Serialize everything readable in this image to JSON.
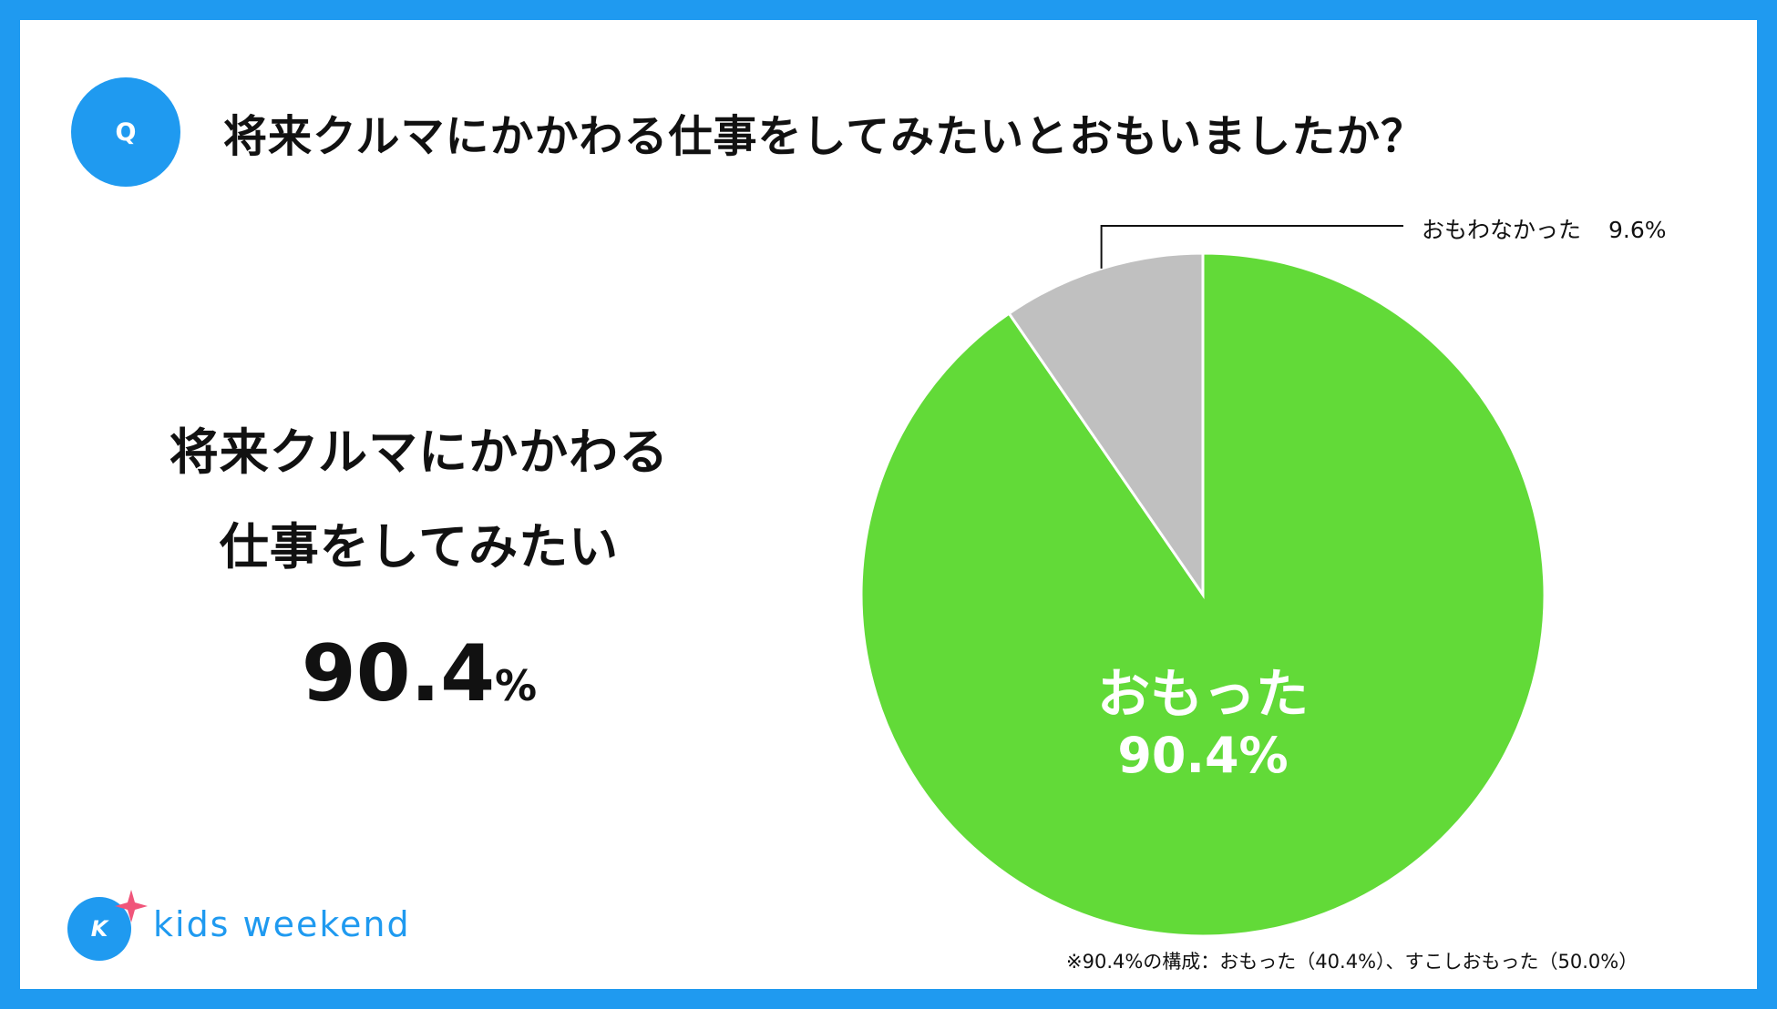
{
  "question": {
    "badge": "Q",
    "text": "将来クルマにかかわる仕事をしてみたいとおもいましたか？"
  },
  "headline": {
    "line1": "将来クルマにかかわる",
    "line2": "仕事をしてみたい",
    "value": "90.4",
    "unit": "%"
  },
  "chart_data": {
    "type": "pie",
    "title": "将来クルマにかかわる仕事をしてみたいとおもいましたか？",
    "categories": [
      "おもった",
      "おもわなかった"
    ],
    "values": [
      90.4,
      9.6
    ],
    "labels": {
      "yes_name": "おもった",
      "yes_value": "90.4%",
      "no_name": "おもわなかった",
      "no_value": "9.6%"
    },
    "colors": [
      "#62da38",
      "#c0c0c0"
    ],
    "start": "12 o'clock",
    "direction": "clockwise"
  },
  "footnote": "※90.4%の構成：おもった（40.4%）、すこしおもった（50.0%）",
  "brand": {
    "logo_letter": "K",
    "name": "kids weekend",
    "accent": "#1f9af0",
    "star_color": "#f0557a"
  }
}
